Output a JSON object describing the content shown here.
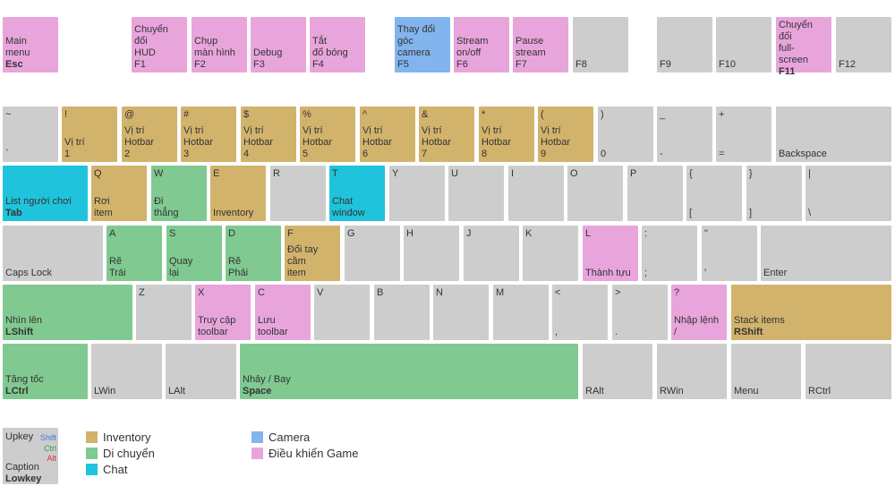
{
  "keyboard": {
    "rows": [
      [
        {
          "caption": [
            "Main",
            "menu"
          ],
          "lower": "Esc",
          "color": "#e8a5dc"
        },
        {
          "caption": [
            "Chuyển đổi",
            "HUD"
          ],
          "lower": "F1",
          "color": "#e8a5dc"
        },
        {
          "caption": [
            "Chụp",
            "màn hình"
          ],
          "lower": "F2",
          "color": "#e8a5dc"
        },
        {
          "caption": [
            "Debug"
          ],
          "lower": "F3",
          "color": "#e8a5dc"
        },
        {
          "caption": [
            "Tắt",
            "đổ bóng"
          ],
          "lower": "F4",
          "color": "#e8a5dc"
        },
        {
          "caption": [
            "Thay đổi",
            "góc camera"
          ],
          "lower": "F5",
          "color": "#82b4ee"
        },
        {
          "caption": [
            "Stream",
            "on/off"
          ],
          "lower": "F6",
          "color": "#e8a5dc"
        },
        {
          "caption": [
            "Pause",
            "stream"
          ],
          "lower": "F7",
          "color": "#e8a5dc"
        },
        {
          "lower": "F8",
          "color": "#cdcdcd"
        },
        {
          "lower": "F9",
          "color": "#cdcdcd"
        },
        {
          "lower": "F10",
          "color": "#cdcdcd"
        },
        {
          "caption": [
            "Chuyển đổi",
            "full-",
            "screen"
          ],
          "lower": "F11",
          "color": "#e8a5dc"
        },
        {
          "lower": "F12",
          "color": "#cdcdcd"
        }
      ],
      [
        {
          "upper": "~",
          "lower": "`",
          "color": "#cdcdcd"
        },
        {
          "upper": "!",
          "caption": [
            "Vị trí"
          ],
          "lower": "1",
          "color": "#d2b36c"
        },
        {
          "upper": "@",
          "caption": [
            "Vị trí",
            "Hotbar"
          ],
          "lower": "2",
          "color": "#d2b36c"
        },
        {
          "upper": "#",
          "caption": [
            "Vị trí",
            "Hotbar"
          ],
          "lower": "3",
          "color": "#d2b36c"
        },
        {
          "upper": "$",
          "caption": [
            "Vị trí",
            "Hotbar"
          ],
          "lower": "4",
          "color": "#d2b36c"
        },
        {
          "upper": "%",
          "caption": [
            "Vị trí",
            "Hotbar"
          ],
          "lower": "5",
          "color": "#d2b36c"
        },
        {
          "upper": "^",
          "caption": [
            "Vị trí",
            "Hotbar"
          ],
          "lower": "6",
          "color": "#d2b36c"
        },
        {
          "upper": "&",
          "caption": [
            "Vị trí",
            "Hotbar"
          ],
          "lower": "7",
          "color": "#d2b36c"
        },
        {
          "upper": "*",
          "caption": [
            "Vị trí",
            "Hotbar"
          ],
          "lower": "8",
          "color": "#d2b36c"
        },
        {
          "upper": "(",
          "caption": [
            "Vị trí",
            "Hotbar"
          ],
          "lower": "9",
          "color": "#d2b36c"
        },
        {
          "upper": ")",
          "lower": "0",
          "color": "#cdcdcd"
        },
        {
          "upper": "_",
          "lower": "-",
          "color": "#cdcdcd"
        },
        {
          "upper": "+",
          "lower": "=",
          "color": "#cdcdcd"
        },
        {
          "lower": "Backspace",
          "color": "#cdcdcd"
        }
      ],
      [
        {
          "caption": [
            "List người chơi"
          ],
          "lower": "Tab",
          "color": "#1fc4dc"
        },
        {
          "upper": "Q",
          "caption": [
            "Rơi",
            "item"
          ],
          "color": "#d2b36c"
        },
        {
          "upper": "W",
          "caption": [
            "Đi",
            "thẳng"
          ],
          "color": "#80c990"
        },
        {
          "upper": "E",
          "caption": [
            "Inventory"
          ],
          "color": "#d2b36c"
        },
        {
          "upper": "R",
          "color": "#cdcdcd"
        },
        {
          "upper": "T",
          "caption": [
            "Chat",
            "window"
          ],
          "color": "#1fc4dc"
        },
        {
          "upper": "Y",
          "color": "#cdcdcd"
        },
        {
          "upper": "U",
          "color": "#cdcdcd"
        },
        {
          "upper": "I",
          "color": "#cdcdcd"
        },
        {
          "upper": "O",
          "color": "#cdcdcd"
        },
        {
          "upper": "P",
          "color": "#cdcdcd"
        },
        {
          "upper": "{",
          "lower": "[",
          "color": "#cdcdcd"
        },
        {
          "upper": "}",
          "lower": "]",
          "color": "#cdcdcd"
        },
        {
          "upper": "|",
          "lower": "\\",
          "color": "#cdcdcd"
        }
      ],
      [
        {
          "lower": "Caps Lock",
          "color": "#cdcdcd"
        },
        {
          "upper": "A",
          "caption": [
            "Rẽ",
            "Trái"
          ],
          "color": "#80c990"
        },
        {
          "upper": "S",
          "caption": [
            "Quay",
            "lại"
          ],
          "color": "#80c990"
        },
        {
          "upper": "D",
          "caption": [
            "Rẽ",
            "Phải"
          ],
          "color": "#80c990"
        },
        {
          "upper": "F",
          "caption": [
            "Đổi tay",
            "cầm",
            "item"
          ],
          "color": "#d2b36c"
        },
        {
          "upper": "G",
          "color": "#cdcdcd"
        },
        {
          "upper": "H",
          "color": "#cdcdcd"
        },
        {
          "upper": "J",
          "color": "#cdcdcd"
        },
        {
          "upper": "K",
          "color": "#cdcdcd"
        },
        {
          "upper": "L",
          "caption": [
            "Thành tựu"
          ],
          "color": "#e8a5dc"
        },
        {
          "upper": ":",
          "lower": ";",
          "color": "#cdcdcd"
        },
        {
          "upper": "\"",
          "lower": "'",
          "color": "#cdcdcd"
        },
        {
          "lower": "Enter",
          "color": "#cdcdcd"
        }
      ],
      [
        {
          "caption": [
            "Nhìn lên"
          ],
          "lower": "LShift",
          "color": "#80c990"
        },
        {
          "upper": "Z",
          "color": "#cdcdcd"
        },
        {
          "upper": "X",
          "caption": [
            "Truy cập",
            "toolbar"
          ],
          "color": "#e8a5dc"
        },
        {
          "upper": "C",
          "caption": [
            "Lưu",
            "toolbar"
          ],
          "color": "#e8a5dc"
        },
        {
          "upper": "V",
          "color": "#cdcdcd"
        },
        {
          "upper": "B",
          "color": "#cdcdcd"
        },
        {
          "upper": "N",
          "color": "#cdcdcd"
        },
        {
          "upper": "M",
          "color": "#cdcdcd"
        },
        {
          "upper": "<",
          "lower": ",",
          "color": "#cdcdcd"
        },
        {
          "upper": ">",
          "lower": ".",
          "color": "#cdcdcd"
        },
        {
          "upper": "?",
          "caption": [
            "Nhập lệnh"
          ],
          "lower": "/",
          "color": "#e8a5dc"
        },
        {
          "caption": [
            "Stack items"
          ],
          "lower": "RShift",
          "color": "#d2b36c"
        }
      ],
      [
        {
          "caption": [
            "Tăng tốc"
          ],
          "lower": "LCtrl",
          "color": "#80c990"
        },
        {
          "lower": "LWin",
          "color": "#cdcdcd"
        },
        {
          "lower": "LAlt",
          "color": "#cdcdcd"
        },
        {
          "caption": [
            "Nhảy / Bay"
          ],
          "lower": "Space",
          "color": "#80c990"
        },
        {
          "lower": "RAlt",
          "color": "#cdcdcd"
        },
        {
          "lower": "RWin",
          "color": "#cdcdcd"
        },
        {
          "lower": "Menu",
          "color": "#cdcdcd"
        },
        {
          "lower": "RCtrl",
          "color": "#cdcdcd"
        }
      ]
    ]
  },
  "legend": {
    "sample": {
      "upkey": "Upkey",
      "shift": "Shift",
      "ctrl": "Ctrl",
      "alt": "Alt",
      "caption": "Caption",
      "lowkey": "Lowkey"
    },
    "items": [
      {
        "name": "Inventory",
        "color": "#d2b36c"
      },
      {
        "name": "Di chuyển",
        "color": "#80c990"
      },
      {
        "name": "Chat",
        "color": "#1fc4dc"
      },
      {
        "name": "Camera",
        "color": "#82b4ee"
      },
      {
        "name": "Điều khiển Game",
        "color": "#e8a5dc"
      }
    ]
  }
}
